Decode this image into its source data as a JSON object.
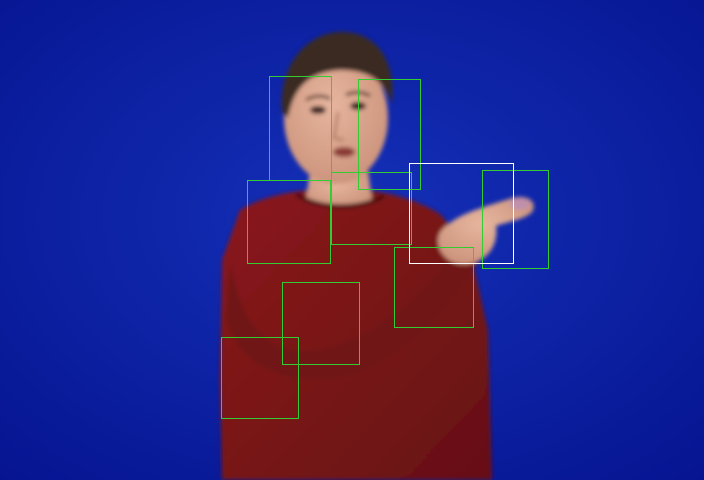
{
  "scene": {
    "subject": "person-in-red-sweater",
    "background_color": "#0a1a9c",
    "sweater_color": "#7a1416",
    "skin_color": "#d9a38c",
    "hair_color": "#3a2a22"
  },
  "annotations": {
    "box_color_green": "#33cc33",
    "box_color_white": "#ffffff",
    "box_count_green": 9,
    "box_count_white": 1
  }
}
